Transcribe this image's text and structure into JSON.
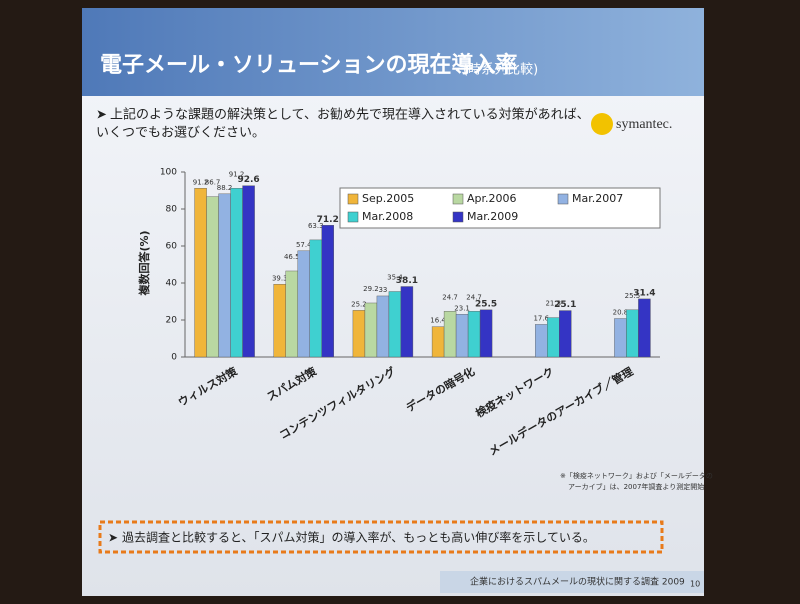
{
  "slide": {
    "title": "電子メール・ソリューションの現在導入率",
    "title_note": "(時系列比較)",
    "question": [
      "上記のような課題の解決策として、お勧め先で現在導入されている対策があれば、",
      "いくつでもお選びください。"
    ],
    "logo": "symantec.",
    "note": [
      "※「検疫ネットワーク」および「メールデータの",
      "アーカイブ」は、2007年調査より測定開始"
    ],
    "conclusion": "過去調査と比較すると、「スパム対策」の導入率が、もっとも高い伸び率を示している。",
    "footer": "企業におけるスパムメールの現状に関する調査 2009",
    "page": "10"
  },
  "chart_data": {
    "type": "bar",
    "y_label": "複数回答(%)",
    "categories": [
      "ウィルス対策",
      "スパム対策",
      "コンテンツフィルタリング",
      "データの暗号化",
      "検疫ネットワーク",
      "メールデータのアーカイブ／管理"
    ],
    "series": [
      {
        "name": "Sep.2005",
        "color": "#f0b53a",
        "values": [
          91.2,
          39.3,
          25.2,
          16.4,
          null,
          null
        ]
      },
      {
        "name": "Apr.2006",
        "color": "#b9d8a2",
        "values": [
          86.7,
          46.5,
          29.2,
          24.7,
          null,
          null
        ]
      },
      {
        "name": "Mar.2007",
        "color": "#92b2e2",
        "values": [
          88.2,
          57.4,
          33,
          23.1,
          17.6,
          20.8
        ]
      },
      {
        "name": "Mar.2008",
        "color": "#3fd0d0",
        "values": [
          91.2,
          63.3,
          35.4,
          24.7,
          21.3,
          25.5
        ]
      },
      {
        "name": "Mar.2009",
        "color": "#3434c4",
        "values": [
          92.6,
          71.2,
          38.1,
          25.5,
          25.1,
          31.4
        ]
      }
    ],
    "ylim": [
      0,
      100
    ],
    "yticks": [
      0,
      20,
      40,
      60,
      80,
      100
    ],
    "grid": false,
    "legend": "top-right"
  }
}
